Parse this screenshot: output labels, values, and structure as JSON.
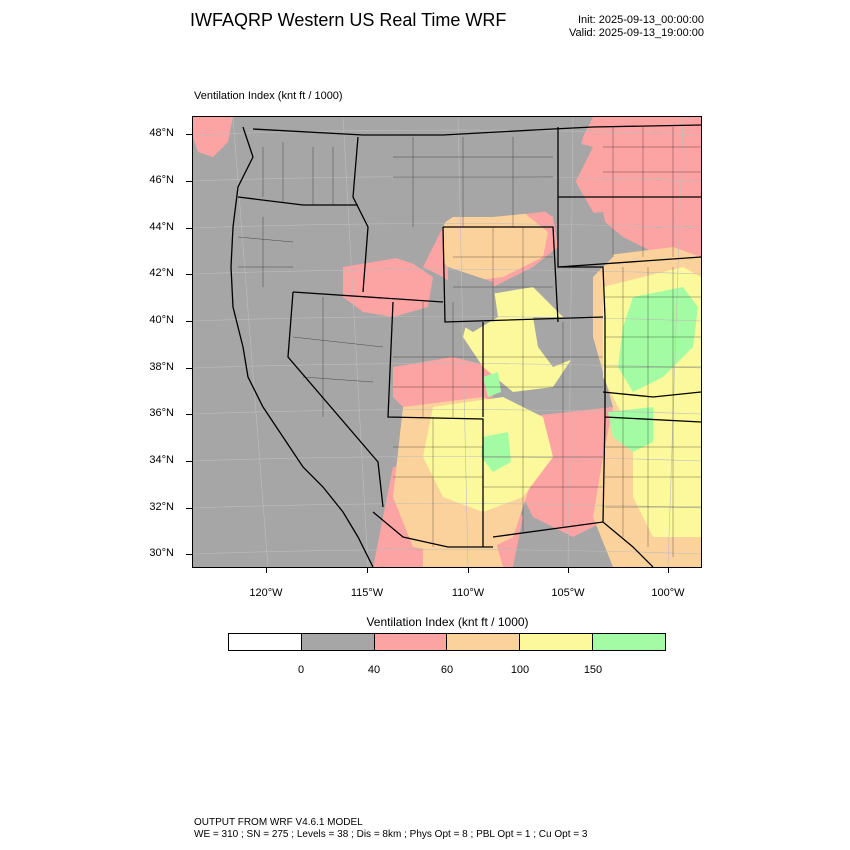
{
  "header": {
    "title": "IWFAQRP Western US Real Time WRF",
    "init": "Init: 2025-09-13_00:00:00",
    "valid": "Valid: 2025-09-13_19:00:00"
  },
  "plot": {
    "label": "Ventilation Index   (knt ft / 1000)",
    "lat_labels": [
      "48°N",
      "46°N",
      "44°N",
      "42°N",
      "40°N",
      "38°N",
      "36°N",
      "34°N",
      "32°N",
      "30°N"
    ],
    "lon_labels": [
      "120°W",
      "115°W",
      "110°W",
      "105°W",
      "100°W"
    ]
  },
  "colorbar": {
    "title": "Ventilation Index   (knt ft / 1000)",
    "bins": [
      {
        "color": "#ffffff"
      },
      {
        "color": "#a6a6a6"
      },
      {
        "color": "#fca3a3"
      },
      {
        "color": "#fcd29c"
      },
      {
        "color": "#fcf99c"
      },
      {
        "color": "#a3fca3"
      }
    ],
    "labels": [
      "0",
      "40",
      "60",
      "100",
      "150"
    ]
  },
  "footer": {
    "line1": "OUTPUT FROM WRF V4.6.1 MODEL",
    "line2": "WE = 310 ; SN = 275 ; Levels = 38 ; Dis = 8km ; Phys Opt = 8 ; PBL Opt = 1 ; Cu Opt = 3"
  }
}
